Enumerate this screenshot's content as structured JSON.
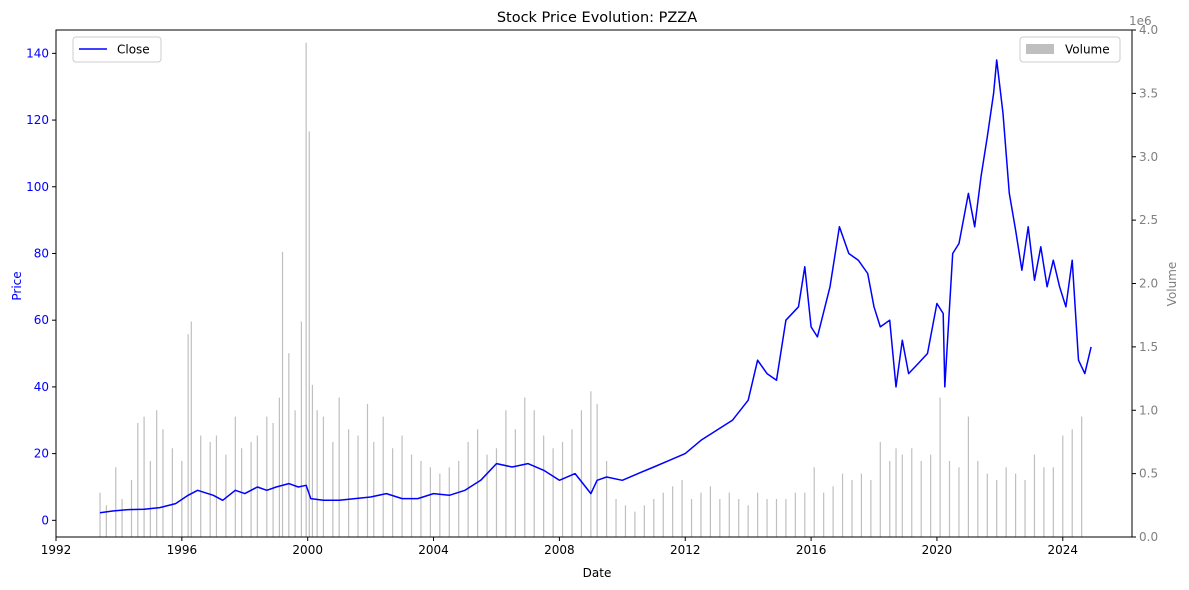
{
  "chart_data": {
    "type": "line",
    "title": "Stock Price Evolution: PZZA",
    "xlabel": "Date",
    "ylabel_left": "Price",
    "ylabel_right": "Volume",
    "right_axis_multiplier": "1e6",
    "xlim": [
      1992.0,
      2026.2
    ],
    "ylim_left": [
      -5,
      147
    ],
    "ylim_right": [
      0,
      4.0
    ],
    "x_ticks": [
      "1992",
      "1996",
      "2000",
      "2004",
      "2008",
      "2012",
      "2016",
      "2020",
      "2024"
    ],
    "y_ticks_left": [
      "0",
      "20",
      "40",
      "60",
      "80",
      "100",
      "120",
      "140"
    ],
    "y_ticks_right": [
      "0.0",
      "0.5",
      "1.0",
      "1.5",
      "2.0",
      "2.5",
      "3.0",
      "3.5",
      "4.0"
    ],
    "legend_left": "top-left",
    "legend_right": "top-right",
    "colors": {
      "close": "#0000ff",
      "volume": "#bfbfbf",
      "left_axis": "#0000ff",
      "right_axis": "#808080"
    },
    "series": [
      {
        "name": "Close",
        "x": [
          1993.4,
          1993.8,
          1994.3,
          1994.8,
          1995.3,
          1995.8,
          1996.2,
          1996.5,
          1997.0,
          1997.3,
          1997.7,
          1998.0,
          1998.4,
          1998.7,
          1999.0,
          1999.4,
          1999.7,
          1999.95,
          2000.1,
          2000.5,
          2001.0,
          2001.5,
          2002.0,
          2002.5,
          2003.0,
          2003.5,
          2004.0,
          2004.5,
          2005.0,
          2005.5,
          2006.0,
          2006.5,
          2007.0,
          2007.5,
          2008.0,
          2008.5,
          2009.0,
          2009.2,
          2009.5,
          2010.0,
          2010.5,
          2011.0,
          2011.5,
          2012.0,
          2012.5,
          2013.0,
          2013.5,
          2014.0,
          2014.3,
          2014.6,
          2014.9,
          2015.2,
          2015.6,
          2015.8,
          2016.0,
          2016.2,
          2016.6,
          2016.9,
          2017.2,
          2017.5,
          2017.8,
          2018.0,
          2018.2,
          2018.5,
          2018.7,
          2018.9,
          2019.1,
          2019.4,
          2019.7,
          2020.0,
          2020.2,
          2020.25,
          2020.5,
          2020.7,
          2021.0,
          2021.2,
          2021.4,
          2021.6,
          2021.8,
          2021.9,
          2022.1,
          2022.3,
          2022.5,
          2022.7,
          2022.9,
          2023.1,
          2023.3,
          2023.5,
          2023.7,
          2023.9,
          2024.1,
          2024.3,
          2024.5,
          2024.7,
          2024.9
        ],
        "y": [
          2.3,
          2.8,
          3.2,
          3.3,
          3.8,
          5.0,
          7.5,
          9.0,
          7.5,
          6.0,
          9.0,
          8.0,
          10.0,
          9.0,
          10.0,
          11.0,
          10.0,
          10.5,
          6.5,
          6.0,
          6.0,
          6.5,
          7.0,
          8.0,
          6.5,
          6.5,
          8.0,
          7.5,
          9.0,
          12.0,
          17.0,
          16.0,
          17.0,
          15.0,
          12.0,
          14.0,
          8.0,
          12.0,
          13.0,
          12.0,
          14.0,
          16.0,
          18.0,
          20.0,
          24.0,
          27.0,
          30.0,
          36.0,
          48.0,
          44.0,
          42.0,
          60.0,
          64.0,
          76.0,
          58.0,
          55.0,
          70.0,
          88.0,
          80.0,
          78.0,
          74.0,
          64.0,
          58.0,
          60.0,
          40.0,
          54.0,
          44.0,
          47.0,
          50.0,
          65.0,
          62.0,
          40.0,
          80.0,
          83.0,
          98.0,
          88.0,
          103.0,
          115.0,
          128.0,
          138.0,
          122.0,
          98.0,
          87.0,
          75.0,
          88.0,
          72.0,
          82.0,
          70.0,
          78.0,
          70.0,
          64.0,
          78.0,
          48.0,
          44.0,
          52.0
        ]
      },
      {
        "name": "Volume",
        "x": [
          1993.4,
          1993.6,
          1993.9,
          1994.1,
          1994.4,
          1994.6,
          1994.8,
          1995.0,
          1995.2,
          1995.4,
          1995.7,
          1996.0,
          1996.2,
          1996.3,
          1996.6,
          1996.9,
          1997.1,
          1997.4,
          1997.7,
          1997.9,
          1998.2,
          1998.4,
          1998.7,
          1998.9,
          1999.1,
          1999.2,
          1999.4,
          1999.6,
          1999.8,
          1999.95,
          2000.05,
          2000.15,
          2000.3,
          2000.5,
          2000.8,
          2001.0,
          2001.3,
          2001.6,
          2001.9,
          2002.1,
          2002.4,
          2002.7,
          2003.0,
          2003.3,
          2003.6,
          2003.9,
          2004.2,
          2004.5,
          2004.8,
          2005.1,
          2005.4,
          2005.7,
          2006.0,
          2006.3,
          2006.6,
          2006.9,
          2007.2,
          2007.5,
          2007.8,
          2008.1,
          2008.4,
          2008.7,
          2009.0,
          2009.2,
          2009.5,
          2009.8,
          2010.1,
          2010.4,
          2010.7,
          2011.0,
          2011.3,
          2011.6,
          2011.9,
          2012.2,
          2012.5,
          2012.8,
          2013.1,
          2013.4,
          2013.7,
          2014.0,
          2014.3,
          2014.6,
          2014.9,
          2015.2,
          2015.5,
          2015.8,
          2016.1,
          2016.4,
          2016.7,
          2017.0,
          2017.3,
          2017.6,
          2017.9,
          2018.2,
          2018.5,
          2018.7,
          2018.9,
          2019.2,
          2019.5,
          2019.8,
          2020.1,
          2020.4,
          2020.7,
          2021.0,
          2021.3,
          2021.6,
          2021.9,
          2022.2,
          2022.5,
          2022.8,
          2023.1,
          2023.4,
          2023.7,
          2024.0,
          2024.3,
          2024.6
        ],
        "y": [
          0.35,
          0.25,
          0.55,
          0.3,
          0.45,
          0.9,
          0.95,
          0.6,
          1.0,
          0.85,
          0.7,
          0.6,
          1.6,
          1.7,
          0.8,
          0.75,
          0.8,
          0.65,
          0.95,
          0.7,
          0.75,
          0.8,
          0.95,
          0.9,
          1.1,
          2.25,
          1.45,
          1.0,
          1.7,
          3.9,
          3.2,
          1.2,
          1.0,
          0.95,
          0.75,
          1.1,
          0.85,
          0.8,
          1.05,
          0.75,
          0.95,
          0.7,
          0.8,
          0.65,
          0.6,
          0.55,
          0.5,
          0.55,
          0.6,
          0.75,
          0.85,
          0.65,
          0.7,
          1.0,
          0.85,
          1.1,
          1.0,
          0.8,
          0.7,
          0.75,
          0.85,
          1.0,
          1.15,
          1.05,
          0.6,
          0.3,
          0.25,
          0.2,
          0.25,
          0.3,
          0.35,
          0.4,
          0.45,
          0.3,
          0.35,
          0.4,
          0.3,
          0.35,
          0.3,
          0.25,
          0.35,
          0.3,
          0.3,
          0.3,
          0.35,
          0.35,
          0.55,
          0.35,
          0.4,
          0.5,
          0.45,
          0.5,
          0.45,
          0.75,
          0.6,
          0.7,
          0.65,
          0.7,
          0.6,
          0.65,
          1.1,
          0.6,
          0.55,
          0.95,
          0.6,
          0.5,
          0.45,
          0.55,
          0.5,
          0.45,
          0.65,
          0.55,
          0.55,
          0.8,
          0.85,
          0.95
        ]
      }
    ]
  }
}
